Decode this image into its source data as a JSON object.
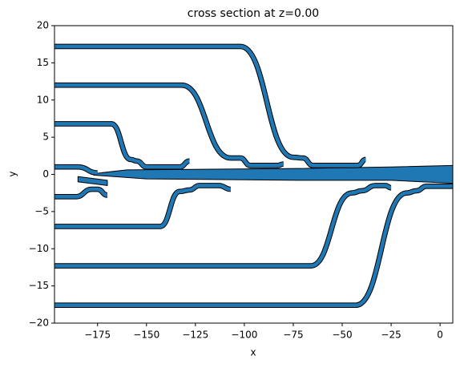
{
  "chart_data": {
    "type": "polygon",
    "title": "cross section at z=0.00",
    "xlabel": "x",
    "ylabel": "y",
    "xlim": [
      -197,
      6.5
    ],
    "ylim": [
      -20,
      20
    ],
    "xticks": [
      {
        "value": -175,
        "label": "−175"
      },
      {
        "value": -150,
        "label": "−150"
      },
      {
        "value": -125,
        "label": "−125"
      },
      {
        "value": -100,
        "label": "−100"
      },
      {
        "value": -75,
        "label": "−75"
      },
      {
        "value": -50,
        "label": "−50"
      },
      {
        "value": -25,
        "label": "−25"
      },
      0
    ],
    "yticks": [
      {
        "value": -20,
        "label": "−20"
      },
      {
        "value": -15,
        "label": "−15"
      },
      {
        "value": -10,
        "label": "−10"
      },
      {
        "value": -5,
        "label": "−5"
      },
      0,
      5,
      10,
      15,
      20
    ],
    "color": "#1f77b4",
    "edgecolor": "#000000",
    "width": 0.5,
    "waveguides": [
      {
        "x": [
          -197,
          -102,
          -75,
          -70,
          -65,
          -42,
          -38
        ],
        "y": [
          17.2,
          17.2,
          2.3,
          2.2,
          1.2,
          1.2,
          2
        ]
      },
      {
        "x": [
          -197,
          -132,
          -107,
          -102,
          -97,
          -83,
          -80
        ],
        "y": [
          12,
          12,
          2.2,
          2.2,
          1.2,
          1.2,
          1.4
        ]
      },
      {
        "x": [
          -197,
          -168,
          -158,
          -155,
          -150,
          -133,
          -128
        ],
        "y": [
          6.8,
          6.8,
          2,
          1.8,
          1,
          1,
          1.8
        ]
      },
      {
        "x": [
          -197,
          -185,
          -175
        ],
        "y": [
          1,
          1,
          0.2
        ]
      },
      {
        "x": [
          -197,
          -186,
          -178,
          -175,
          -170
        ],
        "y": [
          -3,
          -3,
          -2,
          -2,
          -2.8
        ]
      },
      {
        "x": [
          -197,
          -143,
          -133,
          -128,
          -123,
          -113,
          -107
        ],
        "y": [
          -7,
          -7,
          -2.3,
          -2.1,
          -1.5,
          -1.5,
          -2
        ]
      },
      {
        "x": [
          -197,
          -66,
          -45,
          -40,
          -33,
          -28,
          -25
        ],
        "y": [
          -12.3,
          -12.3,
          -2.5,
          -2.2,
          -1.5,
          -1.5,
          -1.8
        ]
      },
      {
        "x": [
          -197,
          -43,
          -17,
          -12,
          -7,
          6.5
        ],
        "y": [
          -17.6,
          -17.6,
          -2.5,
          -2.2,
          -1.6,
          -1.6
        ]
      }
    ],
    "polygons": [
      {
        "x": [
          -177,
          -160,
          -72,
          -25,
          6.5,
          6.5,
          -25,
          -72,
          -150,
          -177
        ],
        "y": [
          0.1,
          0.6,
          0.8,
          1,
          1.2,
          -1.2,
          -0.8,
          -0.8,
          -0.6,
          -0.1
        ]
      },
      {
        "x": [
          -185,
          -170,
          -170,
          -185
        ],
        "y": [
          -0.3,
          -0.8,
          -1.5,
          -1.0
        ]
      }
    ]
  }
}
